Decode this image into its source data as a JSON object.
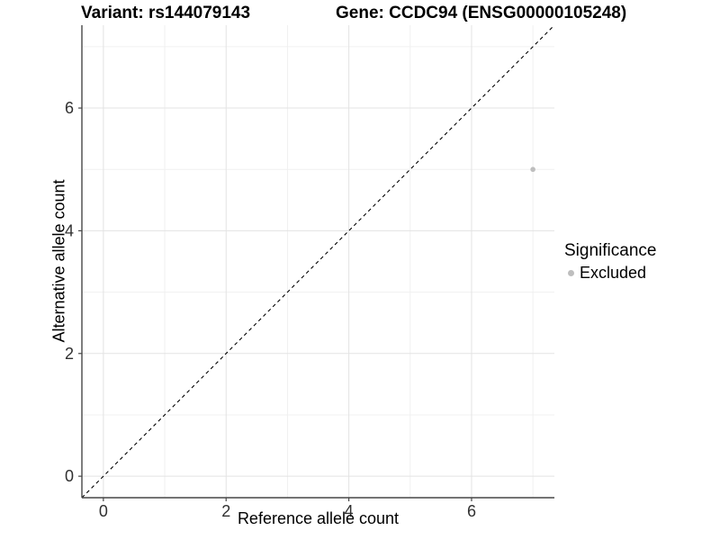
{
  "header": {
    "variant_title": "Variant: rs144079143",
    "gene_title": "Gene: CCDC94 (ENSG00000105248)"
  },
  "chart_data": {
    "type": "scatter",
    "title": "Variant: rs144079143    Gene: CCDC94 (ENSG00000105248)",
    "xlabel": "Reference allele count",
    "ylabel": "Alternative allele count",
    "xlim": [
      -0.35,
      7.35
    ],
    "ylim": [
      -0.35,
      7.35
    ],
    "x_ticks": [
      0,
      2,
      4,
      6
    ],
    "y_ticks": [
      0,
      2,
      4,
      6
    ],
    "x_minor_ticks": [
      1,
      3,
      5,
      7
    ],
    "y_minor_ticks": [
      1,
      3,
      5,
      7
    ],
    "grid": true,
    "series": [
      {
        "name": "Excluded",
        "points": [
          {
            "x": 7,
            "y": 5
          }
        ],
        "color": "#bebebe"
      }
    ],
    "reference_line": {
      "description": "identity line y = x",
      "slope": 1,
      "intercept": 0,
      "style": "dashed",
      "color": "#000000"
    },
    "legend": {
      "title": "Significance",
      "position": "right",
      "items": [
        {
          "label": "Excluded",
          "color": "#bebebe"
        }
      ]
    },
    "colors": {
      "background": "#ffffff",
      "panel_background": "#ffffff",
      "grid_major": "#e3e3e3",
      "grid_minor": "#f0f0f0",
      "axis_line": "#474747",
      "tick_label": "#303030",
      "point": "#bebebe"
    }
  }
}
